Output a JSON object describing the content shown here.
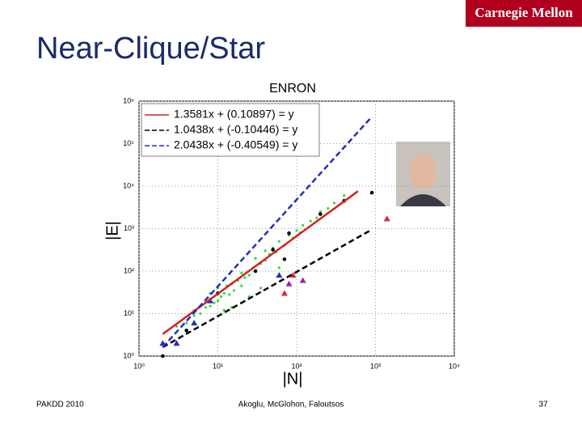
{
  "slide": {
    "title": "Near-Clique/Star",
    "logo": "Carnegie Mellon",
    "footer_left": "PAKDD 2010",
    "footer_center": "Akoglu, McGlohon, Faloutsos",
    "page_number": "37"
  },
  "chart_data": {
    "type": "scatter",
    "title": "ENRON",
    "xlabel": "|N|",
    "ylabel": "|E|",
    "log_x": true,
    "log_y": true,
    "grid": true,
    "legend": "upper left",
    "xlim": [
      1,
      10000
    ],
    "ylim": [
      1,
      1000000
    ],
    "xticks": [
      {
        "value": 1,
        "label": "10⁰"
      },
      {
        "value": 10,
        "label": "10¹"
      },
      {
        "value": 100,
        "label": "10²"
      },
      {
        "value": 1000,
        "label": "10³"
      },
      {
        "value": 10000,
        "label": "10⁴"
      }
    ],
    "yticks": [
      {
        "value": 1,
        "label": "10⁰"
      },
      {
        "value": 10,
        "label": "10¹"
      },
      {
        "value": 100,
        "label": "10²"
      },
      {
        "value": 1000,
        "label": "10³"
      },
      {
        "value": 10000,
        "label": "10⁴"
      },
      {
        "value": 100000,
        "label": "10⁵"
      },
      {
        "value": 1000000,
        "label": "10⁶"
      }
    ],
    "series": [
      {
        "kind": "points",
        "marker": "dot",
        "color": "#33dd33",
        "x": [
          3,
          4,
          5,
          5,
          6,
          7,
          8,
          8,
          9,
          10,
          10,
          11,
          12,
          13,
          14,
          15,
          16,
          18,
          20,
          20,
          22,
          25,
          28,
          30,
          30,
          35,
          40,
          40,
          45,
          50,
          55,
          60,
          70,
          80,
          90,
          100,
          110,
          120,
          150,
          180,
          200,
          250,
          300,
          400,
          12,
          15,
          25,
          35,
          60,
          8
        ],
        "values": [
          5,
          6,
          9,
          12,
          10,
          14,
          15,
          22,
          18,
          20,
          40,
          25,
          30,
          45,
          28,
          50,
          35,
          60,
          45,
          90,
          70,
          80,
          120,
          100,
          200,
          150,
          180,
          300,
          250,
          350,
          280,
          500,
          400,
          700,
          600,
          900,
          800,
          1200,
          1500,
          1800,
          2500,
          3000,
          4000,
          6000,
          12,
          14,
          25,
          40,
          120,
          30
        ]
      },
      {
        "kind": "points",
        "marker": "circle",
        "color": "#000000",
        "x": [
          2,
          4,
          10,
          30,
          50,
          80,
          70,
          200,
          400,
          900
        ],
        "values": [
          1,
          4,
          30,
          100,
          320,
          780,
          190,
          2200,
          4500,
          7000
        ]
      },
      {
        "kind": "points",
        "marker": "triangle",
        "color": "#2030c0",
        "x": [
          2,
          3,
          5,
          8,
          60
        ],
        "values": [
          2,
          2,
          6,
          20,
          80
        ]
      },
      {
        "kind": "points",
        "marker": "triangle",
        "color": "#e02040",
        "x": [
          70,
          1400,
          90
        ],
        "values": [
          30,
          1700,
          80
        ]
      },
      {
        "kind": "points",
        "marker": "triangle",
        "color": "#a020a0",
        "x": [
          80,
          120
        ],
        "values": [
          50,
          60
        ]
      },
      {
        "name": "1.3581x + (0.10897) = y",
        "kind": "line",
        "dash": "solid",
        "color": "#d62020",
        "x": [
          2,
          600
        ],
        "values": [
          3.3,
          7600
        ]
      },
      {
        "name": "1.0438x + (-0.10446) = y",
        "kind": "line",
        "dash": "dashed",
        "color": "#000000",
        "x": [
          2,
          900
        ],
        "values": [
          1.62,
          950
        ]
      },
      {
        "name": "2.0438x + (-0.40549) = y",
        "kind": "line",
        "dash": "dashed",
        "color": "#2030c0",
        "x": [
          2,
          900
        ],
        "values": [
          1.62,
          430000
        ]
      }
    ]
  }
}
